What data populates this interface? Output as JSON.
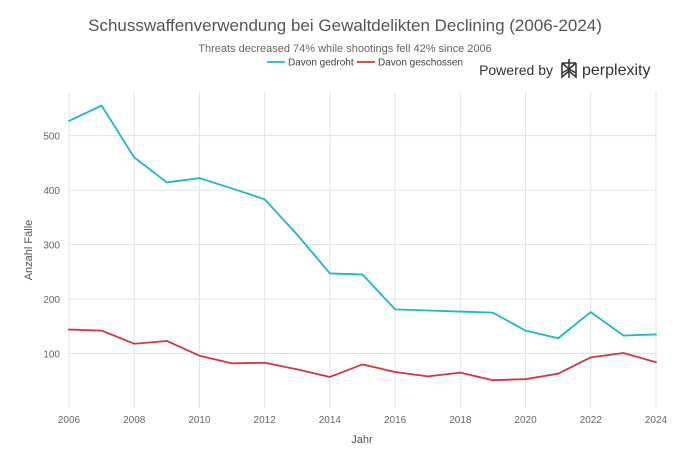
{
  "chart_data": {
    "type": "line",
    "title": "Schusswaffenverwendung bei Gewaltdelikten Declining (2006-2024)",
    "subtitle": "Threats decreased 74% while shootings fell 42% since 2006",
    "xlabel": "Jahr",
    "ylabel": "Anzahl Fälle",
    "x": [
      2006,
      2007,
      2008,
      2009,
      2010,
      2011,
      2012,
      2013,
      2014,
      2015,
      2016,
      2017,
      2018,
      2019,
      2020,
      2021,
      2022,
      2023,
      2024
    ],
    "xlim": [
      2006,
      2024
    ],
    "ylim": [
      0,
      580
    ],
    "x_ticks": [
      "2006",
      "2008",
      "2010",
      "2012",
      "2014",
      "2016",
      "2018",
      "2020",
      "2022",
      "2024"
    ],
    "y_ticks": [
      "100",
      "200",
      "300",
      "400",
      "500"
    ],
    "grid": true,
    "legend_position": "top-center",
    "series": [
      {
        "name": "Davon gedroht",
        "color": "#1fb8c4",
        "values": [
          527,
          555,
          460,
          414,
          422,
          403,
          383,
          318,
          247,
          245,
          181,
          179,
          177,
          175,
          142,
          128,
          176,
          133,
          135
        ]
      },
      {
        "name": "Davon geschossen",
        "color": "#cc3a43",
        "values": [
          144,
          142,
          118,
          123,
          96,
          82,
          83,
          71,
          57,
          80,
          66,
          58,
          65,
          51,
          53,
          63,
          93,
          101,
          84
        ]
      }
    ]
  },
  "branding": {
    "powered_by": "Powered by",
    "brand": "perplexity",
    "brand_icon": "perplexity-logo-icon"
  }
}
